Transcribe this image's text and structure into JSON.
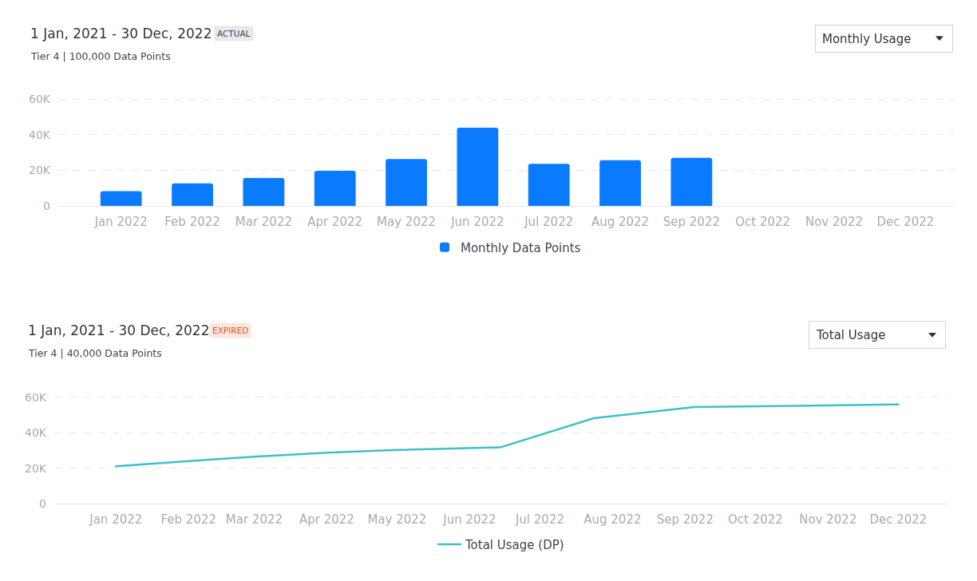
{
  "chart_data": [
    {
      "type": "bar",
      "title": "1 Jan, 2021 - 30 Dec, 2022",
      "subtitle": "Tier 4 | 100,000 Data Points",
      "annotations": [
        "ACTUAL",
        "Monthly Usage"
      ],
      "categories": [
        "Jan 2022",
        "Feb 2022",
        "Mar 2022",
        "Apr 2022",
        "May 2022",
        "Jun 2022",
        "Jul 2022",
        "Aug 2022",
        "Sep 2022",
        "Oct 2022",
        "Nov 2022",
        "Dec 2022"
      ],
      "series": [
        {
          "name": "Monthly Data Points",
          "color": "#0a7bff",
          "values": [
            8300,
            12700,
            15700,
            19800,
            26400,
            44000,
            23700,
            25700,
            27000,
            null,
            null,
            null
          ]
        }
      ],
      "ylim": [
        0,
        60000
      ],
      "yticks": [
        0,
        {
          "value": 20000,
          "label": "20K"
        },
        {
          "value": 40000,
          "label": "40K"
        },
        {
          "value": 60000,
          "label": "60K"
        }
      ],
      "grid": "y",
      "legend": "bottom"
    },
    {
      "type": "line",
      "title": "1 Jan, 2021 - 30 Dec, 2022",
      "subtitle": "Tier 4 | 40,000 Data Points",
      "annotations": [
        "EXPIRED",
        "Total Usage"
      ],
      "x": [
        "2022-01-01",
        "2022-02-01",
        "2022-03-01",
        "2022-04-01",
        "2022-05-01",
        "2022-06-14",
        "2022-07-24",
        "2022-09-05",
        "2022-12-01"
      ],
      "series": [
        {
          "name": "Total Usage (DP)",
          "color": "#3ec0c8",
          "values": [
            21200,
            24100,
            26600,
            28800,
            30400,
            31800,
            48300,
            54600,
            56000
          ]
        }
      ],
      "xlim": [
        "2021-12-06",
        "2022-12-22"
      ],
      "xticks": [
        {
          "value": "2022-01-01",
          "label": "Jan 2022"
        },
        {
          "value": "2022-02-01",
          "label": "Feb 2022"
        },
        {
          "value": "2022-03-01",
          "label": "Mar 2022"
        },
        {
          "value": "2022-04-01",
          "label": "Apr 2022"
        },
        {
          "value": "2022-05-01",
          "label": "May 2022"
        },
        {
          "value": "2022-06-01",
          "label": "Jun 2022"
        },
        {
          "value": "2022-07-01",
          "label": "Jul 2022"
        },
        {
          "value": "2022-08-01",
          "label": "Aug 2022"
        },
        {
          "value": "2022-09-01",
          "label": "Sep 2022"
        },
        {
          "value": "2022-10-01",
          "label": "Oct 2022"
        },
        {
          "value": "2022-11-01",
          "label": "Nov 2022"
        },
        {
          "value": "2022-12-01",
          "label": "Dec 2022"
        }
      ],
      "ylim": [
        0,
        60000
      ],
      "yticks": [
        0,
        {
          "value": 20000,
          "label": "20K"
        },
        {
          "value": 40000,
          "label": "40K"
        },
        {
          "value": 60000,
          "label": "60K"
        }
      ],
      "grid": "y",
      "legend": "bottom"
    }
  ]
}
